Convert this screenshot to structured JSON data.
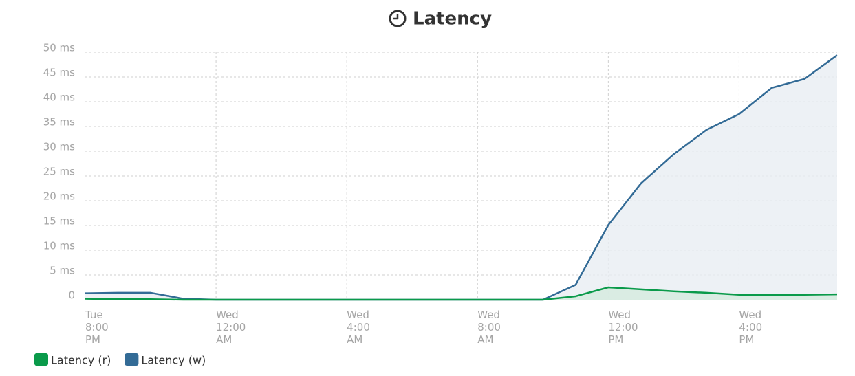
{
  "chart_data": {
    "type": "line",
    "title": "Latency",
    "categories": [
      "Tue 8:00 PM",
      null,
      null,
      null,
      "Wed 12:00 AM",
      null,
      null,
      null,
      "Wed 4:00 AM",
      null,
      null,
      null,
      "Wed 8:00 AM",
      null,
      null,
      null,
      "Wed 12:00 PM",
      null,
      null,
      null,
      "Wed 4:00 PM",
      null,
      null,
      null
    ],
    "series": [
      {
        "name": "Latency (r)",
        "color": "#0a9a4a",
        "fill": "#d5ebdf",
        "values": [
          0.2,
          0.1,
          0.1,
          0,
          0,
          0,
          0,
          0,
          0,
          0,
          0,
          0,
          0,
          0,
          0,
          0.7,
          2.5,
          2.1,
          1.7,
          1.4,
          1.0,
          1.0,
          1.0,
          1.1
        ]
      },
      {
        "name": "Latency (w)",
        "color": "#336b96",
        "fill": "#e8edf3",
        "values": [
          1.3,
          1.4,
          1.4,
          0.2,
          0,
          0,
          0,
          0,
          0,
          0,
          0,
          0,
          0,
          0,
          0,
          3.0,
          15.1,
          23.5,
          29.4,
          34.3,
          37.5,
          42.8,
          44.6,
          49.4
        ]
      }
    ],
    "ylim": [
      0,
      50
    ],
    "yticks": [
      0,
      {
        "value": 5,
        "label": "5 ms"
      },
      {
        "value": 10,
        "label": "10 ms"
      },
      {
        "value": 15,
        "label": "15 ms"
      },
      {
        "value": 20,
        "label": "20 ms"
      },
      {
        "value": 25,
        "label": "25 ms"
      },
      {
        "value": 30,
        "label": "30 ms"
      },
      {
        "value": 35,
        "label": "35 ms"
      },
      {
        "value": 40,
        "label": "40 ms"
      },
      {
        "value": 45,
        "label": "45 ms"
      },
      {
        "value": 50,
        "label": "50 ms"
      }
    ],
    "grid": true,
    "legend": "bottom-left"
  }
}
